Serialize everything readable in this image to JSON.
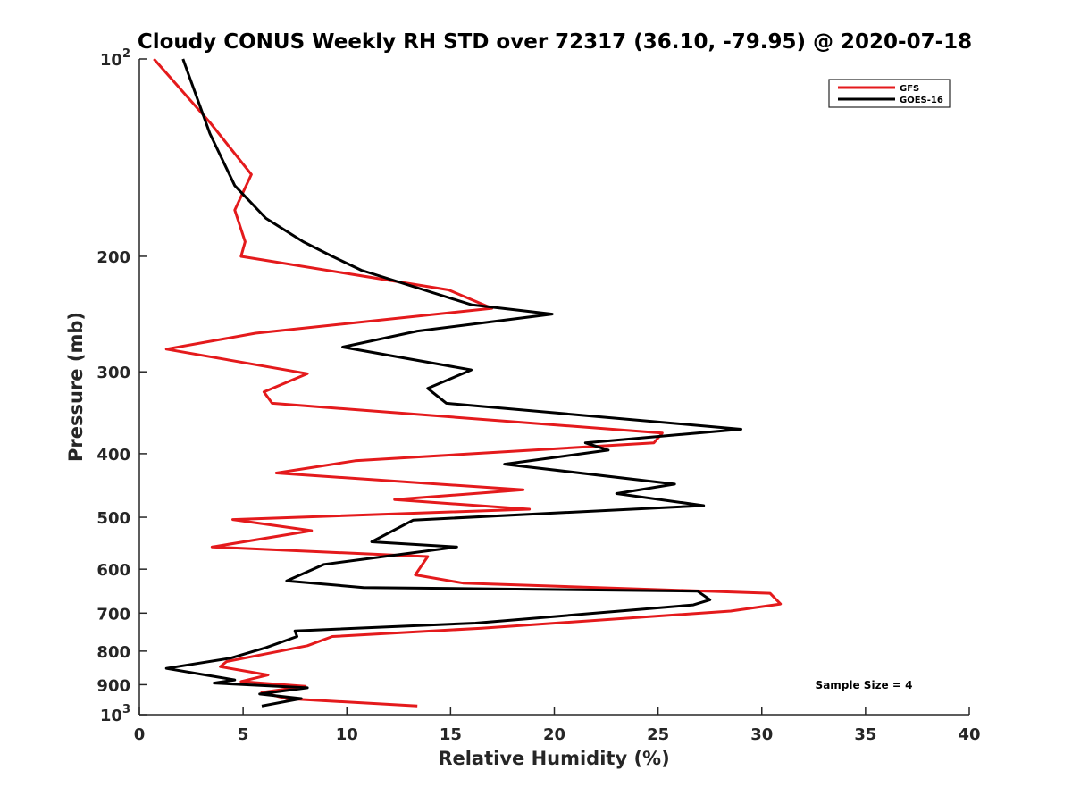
{
  "chart_data": {
    "type": "line",
    "title": "Cloudy CONUS Weekly RH STD over 72317 (36.10, -79.95) @ 2020-07-18",
    "xlabel": "Relative Humidity (%)",
    "ylabel": "Pressure (mb)",
    "xlim": [
      0,
      40
    ],
    "ylim": [
      100,
      1000
    ],
    "y_scale": "log",
    "y_reversed": true,
    "grid": false,
    "legend_position": "top-right",
    "x_ticks": [
      0,
      5,
      10,
      15,
      20,
      25,
      30,
      35,
      40
    ],
    "y_ticks": [
      {
        "value": 100,
        "base": "10",
        "exp": "2"
      },
      {
        "value": 200,
        "label": "200"
      },
      {
        "value": 300,
        "label": "300"
      },
      {
        "value": 400,
        "label": "400"
      },
      {
        "value": 500,
        "label": "500"
      },
      {
        "value": 600,
        "label": "600"
      },
      {
        "value": 700,
        "label": "700"
      },
      {
        "value": 800,
        "label": "800"
      },
      {
        "value": 900,
        "label": "900"
      },
      {
        "value": 1000,
        "base": "10",
        "exp": "3"
      }
    ],
    "annotation": "Sample Size = 4",
    "series": [
      {
        "name": "GFS",
        "color": "#e41a1c",
        "points": [
          [
            0.7,
            100
          ],
          [
            3.4,
            125
          ],
          [
            5.4,
            150
          ],
          [
            4.6,
            170
          ],
          [
            5.1,
            190
          ],
          [
            4.9,
            200
          ],
          [
            14.9,
            225
          ],
          [
            17.0,
            240
          ],
          [
            5.6,
            262
          ],
          [
            1.3,
            277
          ],
          [
            8.1,
            302
          ],
          [
            6.0,
            322
          ],
          [
            6.4,
            335
          ],
          [
            25.2,
            372
          ],
          [
            24.8,
            385
          ],
          [
            10.4,
            410
          ],
          [
            6.6,
            428
          ],
          [
            18.5,
            454
          ],
          [
            12.3,
            470
          ],
          [
            18.8,
            486
          ],
          [
            4.5,
            504
          ],
          [
            8.3,
            524
          ],
          [
            3.5,
            555
          ],
          [
            13.9,
            574
          ],
          [
            13.3,
            612
          ],
          [
            15.6,
            630
          ],
          [
            30.4,
            653
          ],
          [
            30.9,
            678
          ],
          [
            28.5,
            695
          ],
          [
            16.5,
            738
          ],
          [
            9.3,
            760
          ],
          [
            8.1,
            785
          ],
          [
            4.2,
            830
          ],
          [
            3.9,
            845
          ],
          [
            6.2,
            870
          ],
          [
            4.9,
            890
          ],
          [
            8.0,
            905
          ],
          [
            5.9,
            925
          ],
          [
            7.1,
            945
          ],
          [
            13.4,
            970
          ]
        ]
      },
      {
        "name": "GOES-16",
        "color": "#000000",
        "points": [
          [
            2.1,
            100
          ],
          [
            3.4,
            130
          ],
          [
            4.6,
            156
          ],
          [
            6.1,
            175
          ],
          [
            7.9,
            190
          ],
          [
            9.3,
            200
          ],
          [
            10.7,
            210
          ],
          [
            16.0,
            237
          ],
          [
            19.9,
            245
          ],
          [
            13.4,
            260
          ],
          [
            9.8,
            275
          ],
          [
            16.0,
            298
          ],
          [
            13.9,
            318
          ],
          [
            14.8,
            335
          ],
          [
            29.0,
            367
          ],
          [
            21.5,
            385
          ],
          [
            22.6,
            395
          ],
          [
            17.6,
            415
          ],
          [
            25.8,
            445
          ],
          [
            23.0,
            460
          ],
          [
            27.2,
            480
          ],
          [
            13.2,
            505
          ],
          [
            11.2,
            545
          ],
          [
            15.3,
            555
          ],
          [
            8.9,
            590
          ],
          [
            7.1,
            625
          ],
          [
            10.8,
            640
          ],
          [
            26.9,
            648
          ],
          [
            27.5,
            668
          ],
          [
            26.7,
            680
          ],
          [
            16.2,
            725
          ],
          [
            7.5,
            745
          ],
          [
            7.6,
            760
          ],
          [
            6.1,
            790
          ],
          [
            4.4,
            820
          ],
          [
            1.3,
            850
          ],
          [
            3.2,
            870
          ],
          [
            4.6,
            885
          ],
          [
            3.6,
            895
          ],
          [
            8.1,
            910
          ],
          [
            5.8,
            930
          ],
          [
            7.8,
            945
          ],
          [
            5.9,
            970
          ]
        ]
      }
    ]
  }
}
